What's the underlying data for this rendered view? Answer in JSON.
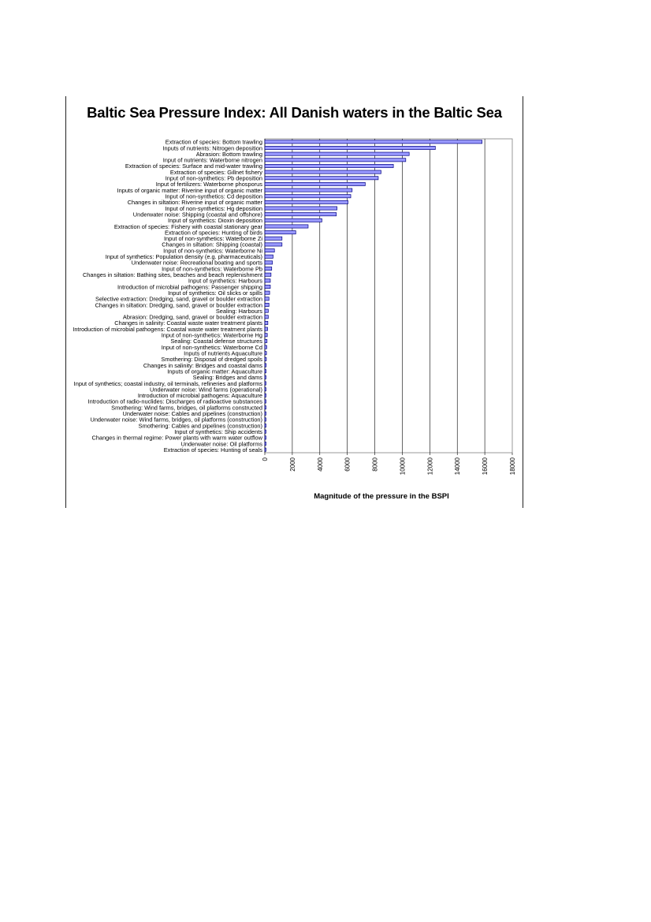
{
  "colors": {
    "bar_fill": "#9999ff",
    "bar_stroke": "#000080",
    "grid": "#000000",
    "text": "#000000"
  },
  "chart_data": {
    "type": "bar",
    "orientation": "horizontal",
    "title": "Baltic Sea Pressure Index: All Danish waters in the Baltic Sea",
    "xlabel": "Magnitude of the pressure in the BSPI",
    "ylabel": "",
    "xlim": [
      0,
      18000
    ],
    "xticks": [
      "0",
      "2000",
      "4000",
      "6000",
      "8000",
      "10000",
      "12000",
      "14000",
      "16000",
      "18000"
    ],
    "grid": "vertical",
    "legend": "none",
    "categories": [
      "Extraction of species: Bottom trawling",
      "Inputs of nutrients: Nitrogen deposition",
      "Abrasion: Bottom trawling",
      "Input of nutrients: Waterborne nitrogen",
      "Extraction of species: Surface and mid-water trawling",
      "Extraction of species: Gillnet fishery",
      "Input of non-synthetics: Pb deposition",
      "Input of fertilizers: Waterborne phosporus",
      "Inputs of organic matter: Riverine input of organic matter",
      "Input of non-synthetics: Cd deposition",
      "Changes in siltation: Riverine input of organic matter",
      "Input of non-synthetics: Hg deposition",
      "Underwater noise: Shipping (coastal and offshore)",
      "Input of synthetics: Dioxin deposition",
      "Extraction of species: Fishery with coastal stationary gear",
      "Extraction of species: Hunting of birds",
      "Input of non-synthetics: Waterborne Zi",
      "Changes in siltation: Shipping (coastal)",
      "Input of non-synthetics: Waterborne Ni",
      "Input of synthetics: Population density (e.g. pharmaceuticals)",
      "Underwater noise: Recreational boating and sports",
      "Input of non-synthetics: Waterborne Pb",
      "Changes in siltation: Bathing sites, beaches and beach replenishment",
      "Input of synthetics: Harbours",
      "Introduction of microbial pathogens: Passenger shipping",
      "Input of synthetics: Oil slicks or spills",
      "Selective extraction: Dredging, sand, gravel or boulder extraction",
      "Changes in siltation: Dredging, sand, gravel or boulder extraction",
      "Sealing: Harbours",
      "Abrasion: Dredging, sand, gravel or boulder extraction",
      "Changes in salinity: Coastal waste water treatment plants",
      "Introduction of microbial pathogens: Coastal waste water treatment plants",
      "Input of non-synthetics: Waterborne Hg",
      "Sealing: Coastal defense structures",
      "Input of non-synthetics: Waterborne Cd",
      "Inputs of nutrients Aquaculture",
      "Smothering: Disposal of dredged spoils",
      "Changes in salinity: Bridges and coastal dams",
      "Inputs of organic matter: Aquaculture",
      "Sealing: Bridges and dams",
      "Input of synthetics; coastal industry, oil terminals, refineries and platforms",
      "Underwater noise: Wind farms (operational)",
      "Introduction of microbial pathogens: Aquaculture",
      "Introduction of radio-nuclides: Discharges of radioactive substances",
      "Smothering: Wind farms, bridges, oil platforms constructed",
      "Underwater noise: Cables and pipelines (construction)",
      "Underwater noise: Wind farms, bridges, oil platforms (construction)",
      "Smothering: Cables and pipelines (construction)",
      "Input of synthetics: Ship accidents",
      "Changes in thermal regime: Power plants with warm water outflow",
      "Underwater noise: Oil platforms",
      "Extraction of species: Hunting of seals"
    ],
    "values": [
      15800,
      12400,
      10500,
      10250,
      9350,
      8450,
      8250,
      7300,
      6350,
      6250,
      6050,
      5250,
      5200,
      4150,
      3150,
      2250,
      1250,
      1250,
      700,
      600,
      550,
      500,
      450,
      400,
      400,
      350,
      300,
      300,
      250,
      250,
      220,
      200,
      180,
      160,
      140,
      120,
      110,
      100,
      90,
      80,
      70,
      60,
      55,
      50,
      45,
      40,
      35,
      30,
      25,
      20,
      15,
      10
    ]
  }
}
